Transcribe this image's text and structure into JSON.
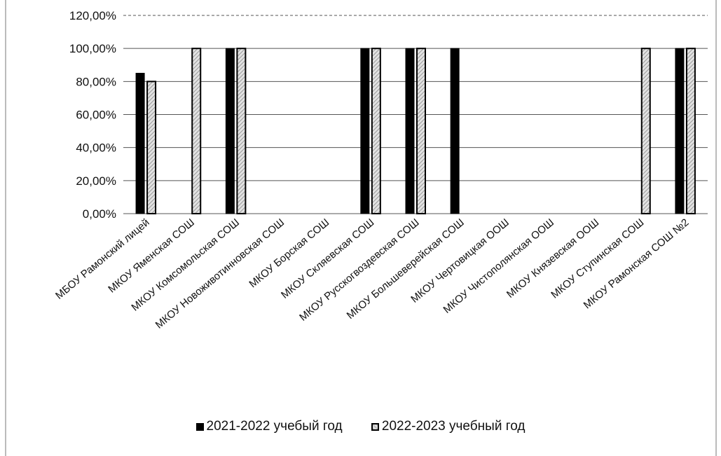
{
  "chart_data": {
    "type": "bar",
    "title": "",
    "xlabel": "",
    "ylabel": "",
    "ylim": [
      0,
      120
    ],
    "y_ticks": [
      "0,00%",
      "20,00%",
      "40,00%",
      "60,00%",
      "80,00%",
      "100,00%",
      "120,00%"
    ],
    "grid": true,
    "legend_position": "bottom",
    "categories": [
      "МБОУ Рамонский лицей",
      "МКОУ Яменская СОШ",
      "МКОУ Комсомольская СОШ",
      "МКОУ Новоживотинновская СОШ",
      "МКОУ Борская СОШ",
      "МКОУ Скляевская СОШ",
      "МКОУ Русскогвоздевская СОШ",
      "МКОУ Большеверейская СОШ",
      "МКОУ Чертовицкая ООШ",
      "МКОУ Чистополянская ООШ",
      "МКОУ Князевская ООШ",
      "МКОУ Ступинская СОШ",
      "МКОУ Рамонская СОШ №2"
    ],
    "series": [
      {
        "name": "2021-2022 учебый год",
        "color": "#000000",
        "values": [
          85,
          0,
          100,
          0,
          0,
          100,
          100,
          100,
          0,
          0,
          0,
          0,
          100
        ]
      },
      {
        "name": "2022-2023 учебный год",
        "color": "#c8c8c8",
        "values": [
          80,
          100,
          100,
          0,
          0,
          100,
          100,
          0,
          0,
          0,
          0,
          100,
          100
        ]
      }
    ]
  }
}
